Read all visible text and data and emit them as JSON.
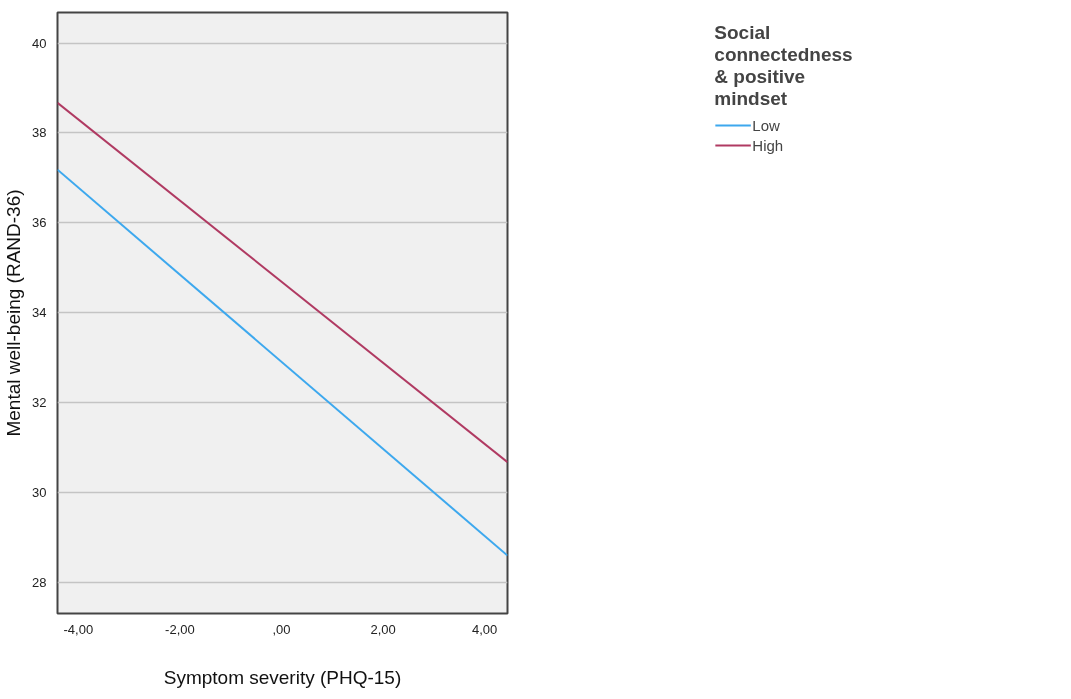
{
  "chart_data": {
    "type": "line",
    "xlabel": "Symptom severity (PHQ-15)",
    "ylabel": "Mental well-being (RAND-36)",
    "legend_title": "Social connectedness & positive mindset",
    "x": [
      -4.41,
      4.45
    ],
    "series": [
      {
        "name": "Low",
        "color": "#3da8ee",
        "values": [
          37.18,
          28.59
        ]
      },
      {
        "name": "High",
        "color": "#b03a62",
        "values": [
          38.67,
          30.67
        ]
      }
    ],
    "xlim": [
      -4.41,
      4.45
    ],
    "ylim": [
      27.3,
      40.68
    ],
    "xticks": [
      {
        "value": -4,
        "label": "-4,00"
      },
      {
        "value": -2,
        "label": "-2,00"
      },
      {
        "value": 0,
        "label": ",00"
      },
      {
        "value": 2,
        "label": "2,00"
      },
      {
        "value": 4,
        "label": "4,00"
      }
    ],
    "yticks": [
      28,
      30,
      32,
      34,
      36,
      38,
      40
    ],
    "grid": "y",
    "legend": "right",
    "marker": "none",
    "line_style": "solid"
  }
}
